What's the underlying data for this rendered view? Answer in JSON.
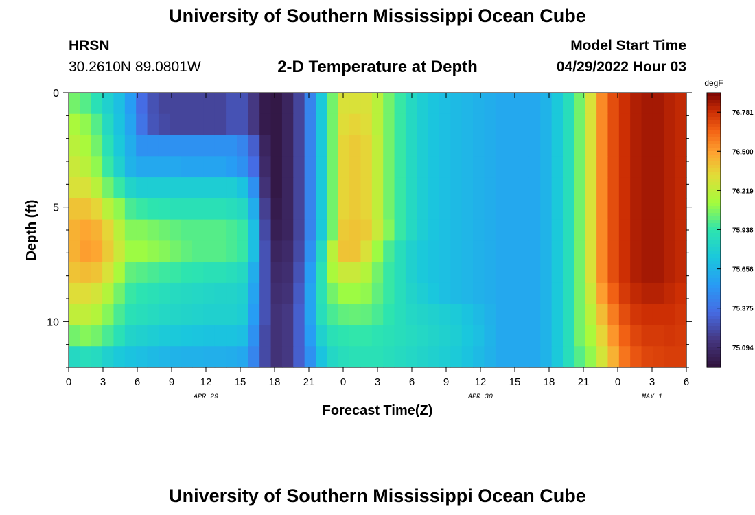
{
  "header": {
    "title": "University of Southern Mississippi Ocean Cube",
    "station_id": "HRSN",
    "station_coords": "30.2610N  89.0801W",
    "plot_title": "2-D Temperature at Depth",
    "start_label": "Model Start Time",
    "start_value": "04/29/2022 Hour 03"
  },
  "footer": {
    "title": "University of Southern Mississippi Ocean Cube"
  },
  "chart_data": {
    "type": "heatmap",
    "title": "2-D Temperature at Depth",
    "xlabel": "Forecast Time(Z)",
    "ylabel": "Depth (ft)",
    "x_unit": "hours since 2022-04-29 00Z",
    "xlim": [
      0,
      54
    ],
    "ylim": [
      0,
      12
    ],
    "y_inverted": true,
    "x_ticks": [
      0,
      3,
      6,
      9,
      12,
      15,
      18,
      21,
      24,
      27,
      30,
      33,
      36,
      39,
      42,
      45,
      48,
      51,
      54
    ],
    "x_tick_labels": [
      "0",
      "3",
      "6",
      "9",
      "12",
      "15",
      "18",
      "21",
      "0",
      "3",
      "6",
      "9",
      "12",
      "15",
      "18",
      "21",
      "0",
      "3",
      "6"
    ],
    "y_ticks": [
      0,
      5,
      10
    ],
    "y_tick_labels": [
      "0",
      "5",
      "10"
    ],
    "date_labels": [
      {
        "x": 12,
        "label": "APR 29"
      },
      {
        "x": 36,
        "label": "APR 30"
      },
      {
        "x": 51,
        "label": "MAY 1"
      }
    ],
    "colorbar": {
      "unit": "degF",
      "min": 74.95,
      "max": 76.92,
      "tick_values": [
        76.781,
        76.5,
        76.219,
        75.938,
        75.656,
        75.375,
        75.094
      ],
      "tick_labels": [
        "76.781",
        "76.500",
        "76.219",
        "75.938",
        "75.656",
        "75.375",
        "75.094"
      ]
    },
    "times": [
      0,
      1,
      2,
      3,
      4,
      5,
      6,
      7,
      8,
      9,
      10,
      11,
      12,
      13,
      14,
      15,
      16,
      17,
      18,
      19,
      20,
      21,
      22,
      23,
      24,
      25,
      26,
      27,
      28,
      29,
      30,
      31,
      32,
      33,
      34,
      35,
      36,
      37,
      38,
      39,
      40,
      41,
      42,
      43,
      44,
      45,
      46,
      47,
      48,
      49,
      50,
      51,
      52,
      53,
      54
    ],
    "depths": [
      0,
      1,
      2,
      3,
      4,
      5,
      6,
      7,
      8,
      9,
      10,
      11,
      12
    ],
    "values": [
      [
        76.05,
        76.0,
        75.9,
        75.8,
        75.7,
        75.55,
        75.35,
        75.25,
        75.2,
        75.2,
        75.2,
        75.2,
        75.2,
        75.2,
        75.25,
        75.25,
        75.15,
        75.0,
        74.98,
        75.05,
        75.2,
        75.45,
        75.75,
        76.05,
        76.3,
        76.3,
        76.3,
        76.2,
        76.05,
        75.95,
        75.85,
        75.78,
        75.73,
        75.7,
        75.68,
        75.66,
        75.64,
        75.62,
        75.6,
        75.6,
        75.6,
        75.6,
        75.65,
        75.75,
        75.88,
        76.05,
        76.3,
        76.55,
        76.7,
        76.78,
        76.83,
        76.85,
        76.85,
        76.82,
        76.8
      ],
      [
        76.15,
        76.1,
        76.0,
        75.85,
        75.72,
        75.58,
        75.38,
        75.26,
        75.22,
        75.2,
        75.2,
        75.2,
        75.2,
        75.2,
        75.25,
        75.25,
        75.15,
        75.0,
        74.98,
        75.05,
        75.2,
        75.45,
        75.75,
        76.05,
        76.32,
        76.35,
        76.32,
        76.2,
        76.05,
        75.95,
        75.85,
        75.78,
        75.73,
        75.7,
        75.68,
        75.66,
        75.64,
        75.62,
        75.6,
        75.6,
        75.6,
        75.6,
        75.65,
        75.75,
        75.88,
        76.05,
        76.3,
        76.55,
        76.7,
        76.78,
        76.83,
        76.85,
        76.85,
        76.82,
        76.8
      ],
      [
        76.2,
        76.15,
        76.05,
        75.9,
        75.75,
        75.62,
        75.5,
        75.5,
        75.5,
        75.5,
        75.5,
        75.5,
        75.5,
        75.5,
        75.5,
        75.45,
        75.3,
        75.05,
        74.98,
        75.05,
        75.2,
        75.45,
        75.75,
        76.05,
        76.35,
        76.38,
        76.35,
        76.22,
        76.05,
        75.95,
        75.85,
        75.78,
        75.73,
        75.7,
        75.68,
        75.66,
        75.64,
        75.62,
        75.6,
        75.6,
        75.6,
        75.6,
        75.65,
        75.75,
        75.88,
        76.05,
        76.3,
        76.55,
        76.7,
        76.78,
        76.83,
        76.85,
        76.85,
        76.82,
        76.8
      ],
      [
        76.25,
        76.2,
        76.1,
        75.95,
        75.8,
        75.65,
        75.6,
        75.6,
        75.6,
        75.6,
        75.58,
        75.58,
        75.58,
        75.58,
        75.55,
        75.5,
        75.35,
        75.08,
        74.98,
        75.05,
        75.2,
        75.45,
        75.75,
        76.05,
        76.35,
        76.38,
        76.35,
        76.22,
        76.05,
        75.95,
        75.85,
        75.78,
        75.73,
        75.7,
        75.68,
        75.66,
        75.64,
        75.62,
        75.6,
        75.6,
        75.6,
        75.6,
        75.65,
        75.75,
        75.88,
        76.05,
        76.3,
        76.55,
        76.7,
        76.78,
        76.83,
        76.85,
        76.85,
        76.82,
        76.8
      ],
      [
        76.3,
        76.3,
        76.2,
        76.05,
        75.95,
        75.82,
        75.78,
        75.78,
        75.78,
        75.78,
        75.78,
        75.78,
        75.78,
        75.78,
        75.78,
        75.72,
        75.5,
        75.12,
        74.98,
        75.05,
        75.2,
        75.45,
        75.75,
        76.05,
        76.35,
        76.38,
        76.35,
        76.22,
        76.05,
        75.95,
        75.85,
        75.78,
        75.73,
        75.7,
        75.68,
        75.66,
        75.64,
        75.62,
        75.6,
        75.6,
        75.6,
        75.6,
        75.65,
        75.75,
        75.88,
        76.05,
        76.3,
        76.55,
        76.7,
        76.78,
        76.83,
        76.85,
        76.85,
        76.82,
        76.8
      ],
      [
        76.4,
        76.4,
        76.35,
        76.2,
        76.1,
        75.98,
        75.95,
        75.93,
        75.92,
        75.9,
        75.9,
        75.9,
        75.9,
        75.9,
        75.88,
        75.85,
        75.62,
        75.18,
        75.0,
        75.05,
        75.2,
        75.45,
        75.75,
        76.05,
        76.35,
        76.38,
        76.35,
        76.22,
        76.05,
        75.95,
        75.85,
        75.78,
        75.73,
        75.7,
        75.68,
        75.66,
        75.64,
        75.62,
        75.6,
        75.6,
        75.6,
        75.6,
        75.65,
        75.75,
        75.88,
        76.05,
        76.3,
        76.55,
        76.7,
        76.78,
        76.83,
        76.85,
        76.85,
        76.82,
        76.8
      ],
      [
        76.45,
        76.48,
        76.45,
        76.35,
        76.2,
        76.08,
        76.08,
        76.06,
        76.04,
        76.02,
        76.0,
        76.0,
        76.0,
        76.0,
        75.98,
        75.95,
        75.7,
        75.22,
        75.02,
        75.05,
        75.2,
        75.45,
        75.75,
        76.05,
        76.38,
        76.4,
        76.38,
        76.25,
        76.08,
        75.95,
        75.85,
        75.78,
        75.73,
        75.7,
        75.68,
        75.66,
        75.64,
        75.62,
        75.6,
        75.6,
        75.6,
        75.6,
        75.65,
        75.75,
        75.88,
        76.05,
        76.3,
        76.55,
        76.7,
        76.78,
        76.83,
        76.85,
        76.85,
        76.82,
        76.8
      ],
      [
        76.45,
        76.5,
        76.48,
        76.38,
        76.25,
        76.12,
        76.12,
        76.1,
        76.08,
        76.05,
        76.02,
        76.0,
        76.0,
        76.0,
        75.98,
        75.95,
        75.7,
        75.25,
        75.05,
        75.08,
        75.22,
        75.5,
        75.85,
        76.2,
        76.4,
        76.4,
        76.3,
        76.12,
        75.98,
        75.88,
        75.8,
        75.75,
        75.72,
        75.7,
        75.68,
        75.66,
        75.64,
        75.62,
        75.6,
        75.6,
        75.6,
        75.6,
        75.65,
        75.75,
        75.88,
        76.05,
        76.3,
        76.55,
        76.7,
        76.78,
        76.83,
        76.85,
        76.85,
        76.82,
        76.8
      ],
      [
        76.4,
        76.42,
        76.4,
        76.3,
        76.15,
        76.02,
        76.0,
        75.98,
        75.96,
        75.95,
        75.93,
        75.92,
        75.9,
        75.9,
        75.88,
        75.85,
        75.62,
        75.25,
        75.08,
        75.1,
        75.25,
        75.55,
        75.9,
        76.15,
        76.25,
        76.25,
        76.18,
        76.05,
        75.95,
        75.88,
        75.8,
        75.75,
        75.72,
        75.7,
        75.68,
        75.66,
        75.64,
        75.62,
        75.6,
        75.6,
        75.6,
        75.6,
        75.65,
        75.75,
        75.88,
        76.05,
        76.3,
        76.55,
        76.7,
        76.78,
        76.83,
        76.85,
        76.85,
        76.82,
        76.8
      ],
      [
        76.32,
        76.32,
        76.28,
        76.18,
        76.05,
        75.95,
        75.92,
        75.9,
        75.88,
        75.86,
        75.85,
        75.84,
        75.83,
        75.82,
        75.82,
        75.8,
        75.58,
        75.25,
        75.1,
        75.12,
        75.28,
        75.58,
        75.9,
        76.05,
        76.12,
        76.12,
        76.1,
        76.02,
        75.95,
        75.88,
        75.82,
        75.78,
        75.74,
        75.7,
        75.68,
        75.66,
        75.64,
        75.62,
        75.6,
        75.6,
        75.6,
        75.6,
        75.65,
        75.75,
        75.88,
        76.05,
        76.25,
        76.5,
        76.65,
        76.75,
        76.8,
        76.82,
        76.82,
        76.8,
        76.78
      ],
      [
        76.22,
        76.22,
        76.18,
        76.08,
        75.98,
        75.9,
        75.88,
        75.86,
        75.84,
        75.83,
        75.82,
        75.81,
        75.8,
        75.8,
        75.8,
        75.78,
        75.55,
        75.25,
        75.12,
        75.15,
        75.3,
        75.58,
        75.88,
        75.98,
        76.02,
        76.03,
        76.02,
        75.98,
        75.93,
        75.88,
        75.84,
        75.82,
        75.8,
        75.78,
        75.76,
        75.72,
        75.68,
        75.64,
        75.6,
        75.6,
        75.6,
        75.6,
        75.65,
        75.75,
        75.88,
        76.05,
        76.2,
        76.42,
        76.58,
        76.7,
        76.76,
        76.78,
        76.78,
        76.78,
        76.76
      ],
      [
        76.05,
        76.08,
        76.05,
        75.98,
        75.9,
        75.82,
        75.8,
        75.78,
        75.76,
        75.75,
        75.74,
        75.73,
        75.72,
        75.72,
        75.72,
        75.7,
        75.5,
        75.22,
        75.12,
        75.15,
        75.3,
        75.55,
        75.8,
        75.9,
        75.93,
        75.94,
        75.94,
        75.92,
        75.9,
        75.88,
        75.86,
        75.84,
        75.82,
        75.8,
        75.78,
        75.74,
        75.7,
        75.65,
        75.6,
        75.6,
        75.6,
        75.6,
        75.65,
        75.75,
        75.88,
        76.05,
        76.15,
        76.35,
        76.52,
        76.65,
        76.72,
        76.75,
        76.75,
        76.76,
        76.75
      ],
      [
        75.85,
        75.88,
        75.86,
        75.8,
        75.75,
        75.72,
        75.7,
        75.68,
        75.66,
        75.65,
        75.64,
        75.64,
        75.63,
        75.63,
        75.62,
        75.6,
        75.45,
        75.22,
        75.12,
        75.15,
        75.3,
        75.5,
        75.72,
        75.84,
        75.88,
        75.9,
        75.9,
        75.9,
        75.88,
        75.86,
        75.84,
        75.82,
        75.8,
        75.78,
        75.76,
        75.72,
        75.68,
        75.64,
        75.6,
        75.6,
        75.6,
        75.6,
        75.65,
        75.75,
        75.88,
        76.0,
        76.1,
        76.28,
        76.45,
        76.6,
        76.68,
        76.72,
        76.73,
        76.74,
        76.74
      ]
    ]
  }
}
